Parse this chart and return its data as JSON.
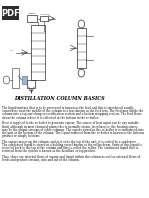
{
  "title": "DISTILLATION COLUMN BASICS",
  "title_fontsize": 3.5,
  "background_color": "#ffffff",
  "text_color": "#000000",
  "body_text": [
    "The liquid mixture that is to be processed is known as the feed and this is introduced usually somewhere near the middle of the column to a tray known as the feed tray. The feed may divide the column into a top enriching or rectification section and a bottom stripping section. The feed flows down the column where it is collected at the bottom in the re-boiler.",
    "Heat is supplied to the re-boiler to generate vapour. The source of heat input can be any suitable fluid, although in most chemical plants this is normally steam. In refineries, the heating source may be the output streams of other columns. The vapour raised in the re-boiler is re-introduced into the unit at the bottom of the column. The liquid removed from the re-boiler is known as the bottoms product or simply, bottoms.",
    "The vapour moves up the column, and as it exits the top of the unit, it is cooled by a condenser. The condensed liquid is stored in a holding vessel known as the reflux drum. Some of this liquid is recycled back to the top of the column and this is called the reflux. The condensed liquid that is removed from the system is known as the distillate or top product.",
    "Thus, there are internal flows of vapour and liquid within the column as well as external flows of feeds and product streams, into and out of the column."
  ],
  "highlighted_words": [
    "feed",
    "feed tray",
    "enriching",
    "rectification",
    "stripping",
    "re-boiler",
    "bottoms product",
    "bottoms",
    "condenser",
    "reflux drum",
    "reflux",
    "distillate",
    "top product",
    "internal flows",
    "external flows"
  ],
  "diagram_color": "#2c2c2c",
  "pdf_badge_color": "#2c2c2c",
  "pdf_text_color": "#ffffff"
}
